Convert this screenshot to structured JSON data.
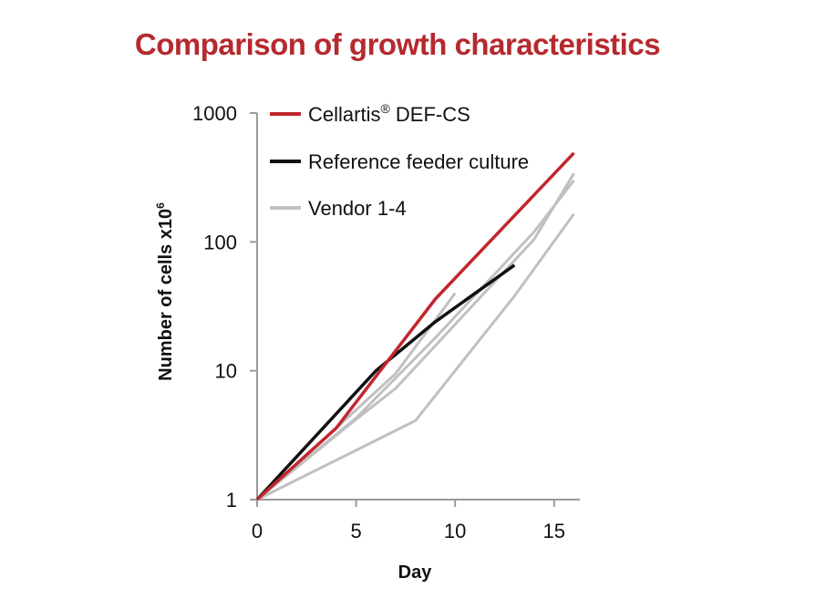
{
  "chart_data": {
    "type": "line",
    "title": "Comparison of growth characteristics",
    "xlabel": "Day",
    "ylabel_main": "Number of cells x10",
    "ylabel_superscript": "6",
    "xlim": [
      0,
      16.3
    ],
    "ylim": [
      1,
      1000
    ],
    "y_scale": "log",
    "x_ticks": [
      {
        "value": 0,
        "label": "0"
      },
      {
        "value": 5,
        "label": "5"
      },
      {
        "value": 10,
        "label": "10"
      },
      {
        "value": 15,
        "label": "15"
      }
    ],
    "y_ticks": [
      {
        "value": 1,
        "label": "1"
      },
      {
        "value": 10,
        "label": "10"
      },
      {
        "value": 100,
        "label": "100"
      },
      {
        "value": 1000,
        "label": "1000"
      }
    ],
    "grid": false,
    "legend_position": "top-left",
    "legend": [
      {
        "label": "Cellartis",
        "mark": "®",
        "suffix": " DEF-CS",
        "color": "#c1272d"
      },
      {
        "label": "Reference feeder culture",
        "mark": "",
        "suffix": "",
        "color": "#111111"
      },
      {
        "label": "Vendor 1-4",
        "mark": "",
        "suffix": "",
        "color": "#c0c0c0"
      }
    ],
    "series": [
      {
        "group": "Vendor 1-4",
        "color": "#c0c0c0",
        "x": [
          0,
          4,
          7,
          10
        ],
        "y": [
          1,
          3.6,
          9.5,
          40
        ]
      },
      {
        "group": "Vendor 1-4",
        "color": "#c0c0c0",
        "x": [
          0,
          5,
          7,
          14,
          16
        ],
        "y": [
          1,
          4.2,
          7.3,
          105,
          340
        ]
      },
      {
        "group": "Vendor 1-4",
        "color": "#c0c0c0",
        "x": [
          0,
          5,
          9,
          14,
          16
        ],
        "y": [
          1,
          4.3,
          18,
          120,
          300
        ]
      },
      {
        "group": "Vendor 1-4",
        "color": "#c0c0c0",
        "x": [
          0,
          8,
          13,
          16
        ],
        "y": [
          1,
          4.1,
          38,
          165
        ]
      },
      {
        "name": "Reference feeder culture",
        "color": "#111111",
        "x": [
          0,
          6,
          9,
          13
        ],
        "y": [
          1,
          10,
          24,
          66
        ]
      },
      {
        "name": "Cellartis® DEF-CS",
        "color": "#c1272d",
        "x": [
          0,
          4,
          9,
          16
        ],
        "y": [
          1,
          3.6,
          36,
          490
        ]
      }
    ],
    "colors": {
      "title": "#b5292f",
      "axis": "#9a9a9a"
    }
  }
}
